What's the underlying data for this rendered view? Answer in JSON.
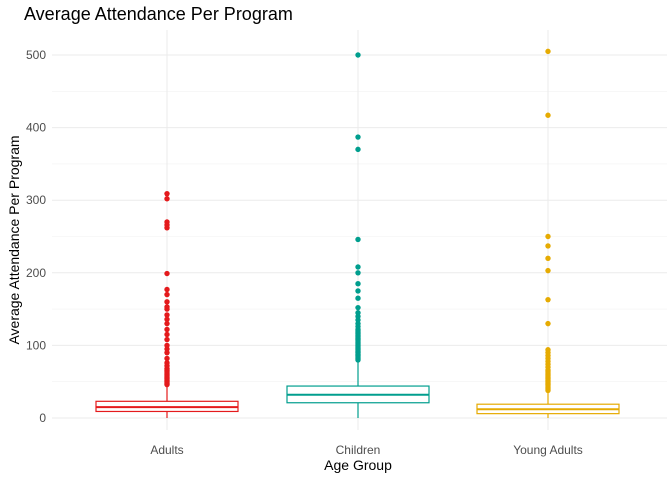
{
  "chart_data": {
    "type": "boxplot",
    "title": "Average Attendance Per Program",
    "xlabel": "Age Group",
    "ylabel": "Average Attendance Per Program",
    "ylim": [
      0,
      530
    ],
    "y_ticks": [
      0,
      100,
      200,
      300,
      400,
      500
    ],
    "grid": true,
    "legend": "none",
    "categories": [
      "Adults",
      "Children",
      "Young Adults"
    ],
    "series": [
      {
        "category": "Adults",
        "color": "#e41a1c",
        "whisker_low": 0,
        "q1": 9,
        "median": 15,
        "q3": 23,
        "whisker_high": 44,
        "outliers": [
          46,
          48,
          50,
          52,
          54,
          56,
          58,
          60,
          62,
          64,
          66,
          68,
          72,
          76,
          82,
          90,
          95,
          100,
          108,
          115,
          122,
          130,
          136,
          142,
          150,
          153,
          160,
          170,
          177,
          199,
          262,
          266,
          270,
          302,
          309
        ]
      },
      {
        "category": "Children",
        "color": "#009e8e",
        "whisker_low": 0,
        "q1": 21,
        "median": 32,
        "q3": 44,
        "whisker_high": 78,
        "outliers": [
          80,
          82,
          84,
          86,
          88,
          90,
          92,
          94,
          96,
          98,
          100,
          102,
          104,
          106,
          108,
          110,
          112,
          114,
          116,
          118,
          120,
          122,
          126,
          130,
          135,
          140,
          145,
          152,
          165,
          175,
          185,
          200,
          208,
          246,
          370,
          387,
          500
        ]
      },
      {
        "category": "Young Adults",
        "color": "#e6ab02",
        "whisker_low": 0,
        "q1": 6,
        "median": 12,
        "q3": 19,
        "whisker_high": 36,
        "outliers": [
          38,
          40,
          42,
          44,
          46,
          48,
          50,
          52,
          54,
          56,
          58,
          60,
          62,
          64,
          66,
          70,
          74,
          78,
          82,
          86,
          90,
          94,
          130,
          163,
          203,
          220,
          237,
          250,
          417,
          505
        ]
      }
    ]
  }
}
